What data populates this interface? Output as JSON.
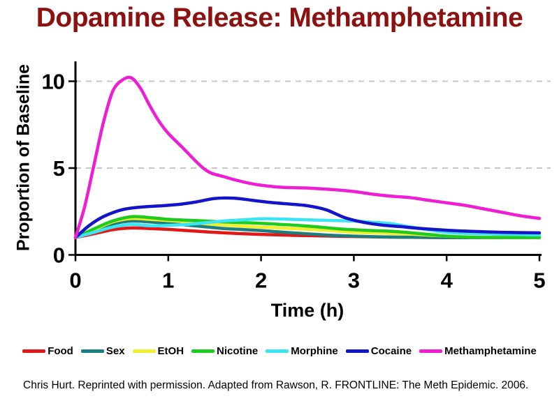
{
  "title": "Dopamine Release: Methamphetamine",
  "footer": "Chris Hurt. Reprinted with permission. Adapted from Rawson, R. FRONTLINE: The Meth Epidemic. 2006.",
  "colors": {
    "title_text": "#8c1212",
    "axis": "#000000",
    "gridline": "#c6c6c6",
    "background": "#ffffff"
  },
  "chart_data": {
    "type": "line",
    "title": "Dopamine Release: Methamphetamine",
    "xlabel": "Time (h)",
    "ylabel": "Proportion of Baseline",
    "xlim": [
      0,
      5
    ],
    "ylim": [
      0,
      10.5
    ],
    "xticks": [
      0,
      1,
      2,
      3,
      4,
      5
    ],
    "yticks": [
      0,
      5,
      10
    ],
    "grid": "horizontal dashed gridlines at y=5 and y=10",
    "legend_position": "bottom",
    "series": [
      {
        "name": "Food",
        "color": "#e21717",
        "points": [
          [
            0,
            1.0
          ],
          [
            0.2,
            1.22
          ],
          [
            0.4,
            1.45
          ],
          [
            0.6,
            1.55
          ],
          [
            0.8,
            1.52
          ],
          [
            1.0,
            1.47
          ],
          [
            1.2,
            1.4
          ],
          [
            1.4,
            1.33
          ],
          [
            1.6,
            1.27
          ],
          [
            1.8,
            1.22
          ],
          [
            2.0,
            1.18
          ],
          [
            2.2,
            1.15
          ],
          [
            2.4,
            1.12
          ],
          [
            2.6,
            1.1
          ],
          [
            2.8,
            1.08
          ],
          [
            3.0,
            1.06
          ],
          [
            3.5,
            1.02
          ],
          [
            4.0,
            1.0
          ],
          [
            4.5,
            1.0
          ],
          [
            5.0,
            1.0
          ]
        ]
      },
      {
        "name": "Sex",
        "color": "#1e7e7e",
        "points": [
          [
            0,
            1.0
          ],
          [
            0.2,
            1.42
          ],
          [
            0.4,
            1.78
          ],
          [
            0.6,
            1.95
          ],
          [
            0.8,
            1.9
          ],
          [
            1.0,
            1.82
          ],
          [
            1.2,
            1.72
          ],
          [
            1.4,
            1.62
          ],
          [
            1.6,
            1.52
          ],
          [
            1.8,
            1.46
          ],
          [
            2.0,
            1.4
          ],
          [
            2.2,
            1.32
          ],
          [
            2.4,
            1.25
          ],
          [
            2.6,
            1.18
          ],
          [
            2.8,
            1.12
          ],
          [
            3.0,
            1.08
          ],
          [
            3.2,
            1.05
          ],
          [
            3.5,
            1.02
          ],
          [
            4.0,
            1.0
          ],
          [
            5.0,
            1.0
          ]
        ]
      },
      {
        "name": "EtOH",
        "color": "#f2ee30",
        "points": [
          [
            0,
            1.0
          ],
          [
            0.2,
            1.45
          ],
          [
            0.4,
            1.9
          ],
          [
            0.6,
            2.1
          ],
          [
            0.8,
            2.05
          ],
          [
            1.0,
            1.98
          ],
          [
            1.2,
            1.9
          ],
          [
            1.4,
            1.8
          ],
          [
            1.6,
            1.72
          ],
          [
            1.8,
            1.66
          ],
          [
            2.0,
            1.6
          ],
          [
            2.2,
            1.55
          ],
          [
            2.4,
            1.5
          ],
          [
            2.6,
            1.45
          ],
          [
            2.8,
            1.38
          ],
          [
            3.0,
            1.3
          ],
          [
            3.2,
            1.27
          ],
          [
            3.4,
            1.24
          ],
          [
            3.6,
            1.2
          ],
          [
            3.8,
            1.14
          ],
          [
            4.0,
            1.08
          ],
          [
            4.2,
            1.04
          ],
          [
            4.5,
            1.0
          ],
          [
            5.0,
            1.0
          ]
        ]
      },
      {
        "name": "Nicotine",
        "color": "#1ecb1e",
        "points": [
          [
            0,
            1.0
          ],
          [
            0.2,
            1.5
          ],
          [
            0.4,
            1.95
          ],
          [
            0.6,
            2.2
          ],
          [
            0.8,
            2.15
          ],
          [
            1.0,
            2.05
          ],
          [
            1.2,
            2.0
          ],
          [
            1.4,
            1.95
          ],
          [
            1.6,
            1.9
          ],
          [
            1.8,
            1.86
          ],
          [
            2.0,
            1.82
          ],
          [
            2.2,
            1.76
          ],
          [
            2.4,
            1.7
          ],
          [
            2.6,
            1.62
          ],
          [
            2.8,
            1.52
          ],
          [
            3.0,
            1.45
          ],
          [
            3.2,
            1.4
          ],
          [
            3.4,
            1.36
          ],
          [
            3.6,
            1.28
          ],
          [
            3.8,
            1.18
          ],
          [
            4.0,
            1.08
          ],
          [
            4.2,
            1.03
          ],
          [
            4.5,
            1.0
          ],
          [
            5.0,
            1.0
          ]
        ]
      },
      {
        "name": "Morphine",
        "color": "#3ce4f4",
        "points": [
          [
            0,
            1.0
          ],
          [
            0.2,
            1.3
          ],
          [
            0.4,
            1.6
          ],
          [
            0.6,
            1.75
          ],
          [
            0.8,
            1.68
          ],
          [
            1.0,
            1.7
          ],
          [
            1.2,
            1.76
          ],
          [
            1.4,
            1.85
          ],
          [
            1.6,
            1.95
          ],
          [
            1.8,
            2.02
          ],
          [
            2.0,
            2.08
          ],
          [
            2.2,
            2.07
          ],
          [
            2.5,
            2.02
          ],
          [
            2.8,
            1.98
          ],
          [
            3.0,
            1.95
          ],
          [
            3.2,
            1.88
          ],
          [
            3.4,
            1.8
          ],
          [
            3.6,
            1.62
          ],
          [
            3.8,
            1.45
          ],
          [
            4.0,
            1.3
          ],
          [
            4.2,
            1.24
          ],
          [
            4.5,
            1.2
          ],
          [
            4.8,
            1.17
          ],
          [
            5.0,
            1.15
          ]
        ]
      },
      {
        "name": "Cocaine",
        "color": "#1414c8",
        "points": [
          [
            0,
            1.0
          ],
          [
            0.15,
            1.7
          ],
          [
            0.3,
            2.2
          ],
          [
            0.5,
            2.6
          ],
          [
            0.7,
            2.75
          ],
          [
            0.9,
            2.82
          ],
          [
            1.1,
            2.9
          ],
          [
            1.3,
            3.05
          ],
          [
            1.5,
            3.25
          ],
          [
            1.7,
            3.27
          ],
          [
            1.9,
            3.15
          ],
          [
            2.1,
            3.02
          ],
          [
            2.3,
            2.93
          ],
          [
            2.5,
            2.83
          ],
          [
            2.7,
            2.6
          ],
          [
            2.9,
            2.15
          ],
          [
            3.1,
            1.88
          ],
          [
            3.3,
            1.72
          ],
          [
            3.5,
            1.63
          ],
          [
            3.7,
            1.53
          ],
          [
            4.0,
            1.42
          ],
          [
            4.3,
            1.35
          ],
          [
            4.6,
            1.3
          ],
          [
            5.0,
            1.27
          ]
        ]
      },
      {
        "name": "Methamphetamine",
        "color": "#ee1ed2",
        "points": [
          [
            0,
            1.0
          ],
          [
            0.1,
            2.8
          ],
          [
            0.2,
            5.2
          ],
          [
            0.3,
            7.6
          ],
          [
            0.4,
            9.4
          ],
          [
            0.5,
            10.05
          ],
          [
            0.6,
            10.2
          ],
          [
            0.7,
            9.6
          ],
          [
            0.8,
            8.6
          ],
          [
            0.9,
            7.7
          ],
          [
            1.0,
            7.0
          ],
          [
            1.15,
            6.2
          ],
          [
            1.4,
            4.9
          ],
          [
            1.6,
            4.5
          ],
          [
            1.9,
            4.1
          ],
          [
            2.2,
            3.9
          ],
          [
            2.5,
            3.85
          ],
          [
            2.8,
            3.75
          ],
          [
            3.0,
            3.65
          ],
          [
            3.2,
            3.5
          ],
          [
            3.4,
            3.38
          ],
          [
            3.6,
            3.3
          ],
          [
            3.8,
            3.15
          ],
          [
            4.0,
            3.0
          ],
          [
            4.2,
            2.85
          ],
          [
            4.4,
            2.65
          ],
          [
            4.6,
            2.45
          ],
          [
            4.8,
            2.25
          ],
          [
            5.0,
            2.1
          ]
        ]
      }
    ]
  }
}
